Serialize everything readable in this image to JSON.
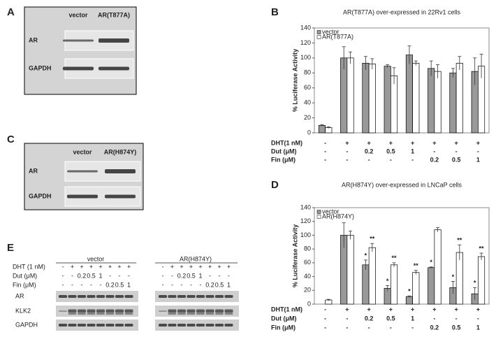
{
  "panel_labels": [
    "A",
    "B",
    "C",
    "D",
    "E"
  ],
  "blots": [
    {
      "columns": [
        "vector",
        "AR(T877A)"
      ],
      "rows": [
        "AR",
        "GAPDH"
      ]
    },
    {
      "columns": [
        "vector",
        "AR(H874Y)"
      ],
      "rows": [
        "AR",
        "GAPDH"
      ]
    }
  ],
  "blot_e": {
    "groups": [
      "vector",
      "AR(H874Y)"
    ],
    "treatments": [
      {
        "label": "DHT (1 nM)",
        "lanes": [
          "-",
          "+",
          "+",
          "+",
          "+",
          "+",
          "+",
          "+",
          "-",
          "+",
          "+",
          "+",
          "+",
          "+",
          "+",
          "+"
        ]
      },
      {
        "label": "Dut (μM)",
        "lanes": [
          "-",
          "-",
          "0.2",
          "0.5",
          "1",
          "-",
          "-",
          "-",
          "-",
          "-",
          "0.2",
          "0.5",
          "1",
          "-",
          "-",
          "-"
        ]
      },
      {
        "label": "Fin (μM)",
        "lanes": [
          "-",
          "-",
          "-",
          "-",
          "-",
          "0.2",
          "0.5",
          "1",
          "-",
          "-",
          "-",
          "-",
          "-",
          "0.2",
          "0.5",
          "1"
        ]
      }
    ],
    "rows": [
      "AR",
      "KLK2",
      "GAPDH"
    ]
  },
  "chart_data": [
    {
      "type": "bar",
      "title": "AR(T877A) over-expressed in 22Rv1 cells",
      "y_label": "% Luciferase Activity",
      "ylim": [
        0,
        140
      ],
      "yticks": [
        0,
        20,
        40,
        60,
        80,
        100,
        120,
        140
      ],
      "grid": false,
      "legend": "upper left",
      "edgecolor": "#000000",
      "series": [
        {
          "name": "vector",
          "color": "#999999",
          "values": [
            10,
            100,
            93,
            89,
            104,
            86,
            80,
            82
          ],
          "errors": [
            1,
            15,
            9,
            2,
            12,
            10,
            6,
            18
          ]
        },
        {
          "name": "AR(T877A)",
          "color": "#ffffff",
          "values": [
            7,
            100,
            92,
            76,
            93,
            82,
            93,
            89
          ],
          "errors": [
            1,
            8,
            7,
            11,
            3,
            9,
            9,
            16
          ]
        }
      ],
      "treatments": [
        {
          "label": "DHT(1 nM)",
          "values": [
            "-",
            "+",
            "+",
            "+",
            "+",
            "+",
            "+",
            "+"
          ]
        },
        {
          "label": "Dut (μM)",
          "values": [
            "-",
            "-",
            "0.2",
            "0.5",
            "1",
            "-",
            "-",
            "-"
          ]
        },
        {
          "label": "Fin (μM)",
          "values": [
            "-",
            "-",
            "-",
            "-",
            "-",
            "0.2",
            "0.5",
            "1"
          ]
        }
      ]
    },
    {
      "type": "bar",
      "title": "AR(H874Y) over-expressed in LNCaP cells",
      "y_label": "% Luciferase Activity",
      "ylim": [
        0,
        140
      ],
      "yticks": [
        0,
        20,
        40,
        60,
        80,
        100,
        120,
        140
      ],
      "grid": false,
      "legend": "upper left",
      "edgecolor": "#000000",
      "series": [
        {
          "name": "vector",
          "color": "#999999",
          "values": [
            null,
            100,
            57,
            23,
            11,
            53,
            24,
            15
          ],
          "errors": [
            null,
            18,
            7,
            4,
            1,
            1,
            9,
            9
          ],
          "annotations": [
            null,
            null,
            "*",
            "*",
            "*",
            "*",
            "*",
            "*"
          ]
        },
        {
          "name": "AR(H874Y)",
          "color": "#ffffff",
          "values": [
            6,
            100,
            82,
            57,
            46,
            108,
            75,
            69
          ],
          "errors": [
            1,
            6,
            6,
            3,
            3,
            3,
            11,
            5
          ],
          "annotations": [
            null,
            null,
            "**",
            "**",
            "**",
            null,
            "**",
            "**"
          ]
        }
      ],
      "treatments": [
        {
          "label": "DHT(1 nM)",
          "values": [
            "-",
            "+",
            "+",
            "+",
            "+",
            "+",
            "+",
            "+"
          ]
        },
        {
          "label": "Dut (μM)",
          "values": [
            "-",
            "-",
            "0.2",
            "0.5",
            "1",
            "-",
            "-",
            "-"
          ]
        },
        {
          "label": "Fin (μM)",
          "values": [
            "-",
            "-",
            "-",
            "-",
            "-",
            "0.2",
            "0.5",
            "1"
          ]
        }
      ]
    }
  ]
}
